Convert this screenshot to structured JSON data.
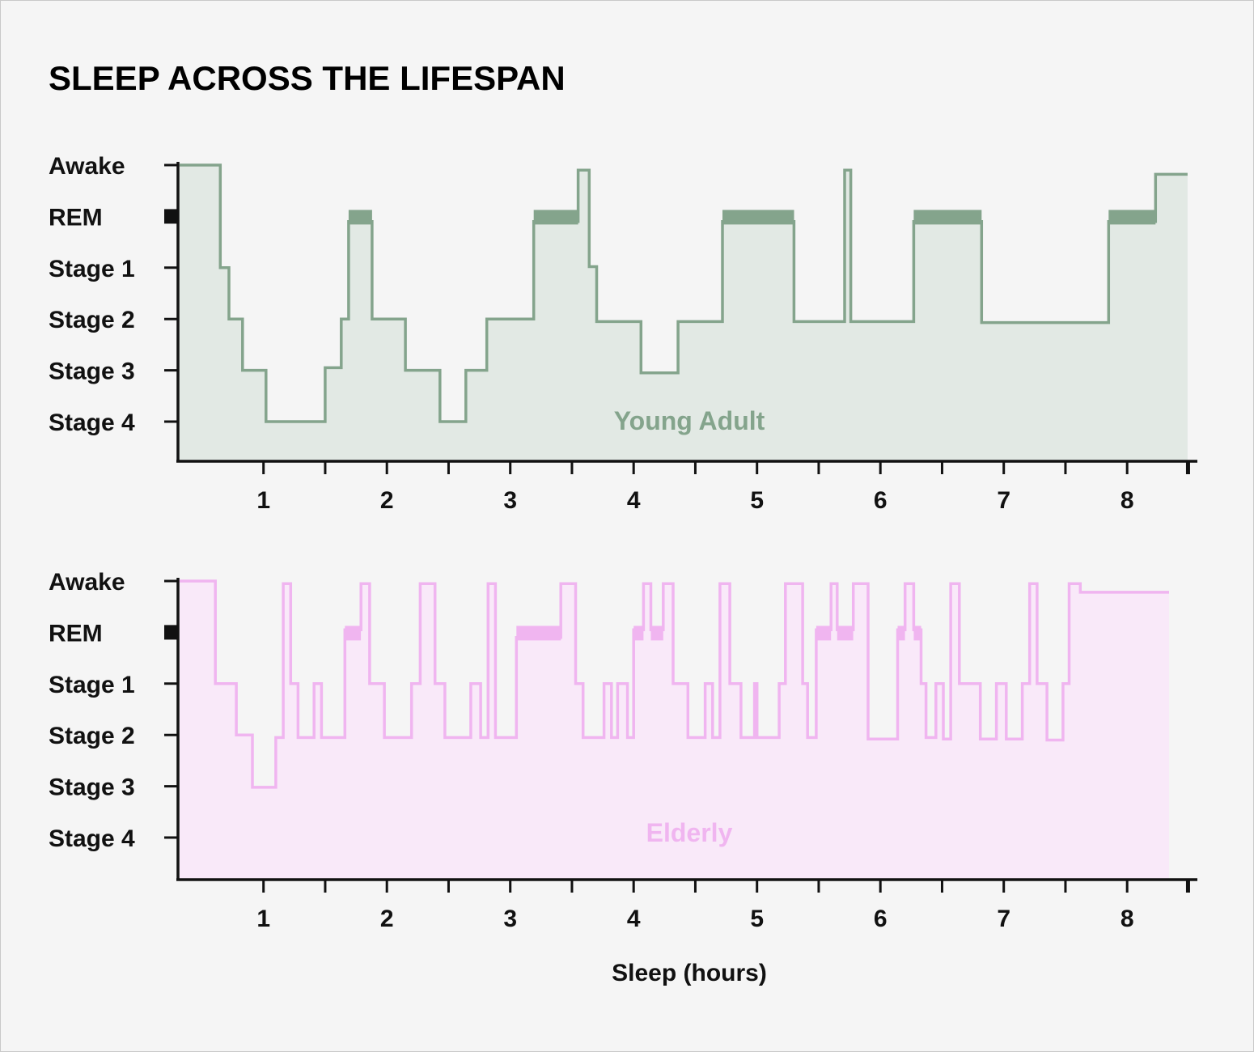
{
  "chart_data": {
    "title": "SLEEP ACROSS THE LIFESPAN",
    "type": "line",
    "xlabel": "Sleep (hours)",
    "stages": [
      "Awake",
      "REM",
      "Stage 1",
      "Stage 2",
      "Stage 3",
      "Stage 4"
    ],
    "xticks": [
      "1",
      "2",
      "3",
      "4",
      "5",
      "6",
      "7",
      "8"
    ],
    "xlim": [
      0.32,
      8.5
    ],
    "ylim": [
      -0.8,
      5.0
    ],
    "panels": [
      {
        "name": "Young Adult",
        "color": "#84a48c",
        "fill": "#e2e9e4",
        "step_points": [
          [
            0.32,
            5.0
          ],
          [
            0.65,
            5.0
          ],
          [
            0.65,
            3.0
          ],
          [
            0.72,
            3.0
          ],
          [
            0.72,
            2.0
          ],
          [
            0.83,
            2.0
          ],
          [
            0.83,
            1.0
          ],
          [
            1.02,
            1.0
          ],
          [
            1.02,
            0.0
          ],
          [
            1.5,
            0.0
          ],
          [
            1.5,
            1.05
          ],
          [
            1.63,
            1.05
          ],
          [
            1.63,
            2.0
          ],
          [
            1.69,
            2.0
          ],
          [
            1.69,
            3.9
          ],
          [
            1.88,
            3.9
          ],
          [
            1.88,
            2.0
          ],
          [
            2.15,
            2.0
          ],
          [
            2.15,
            1.0
          ],
          [
            2.43,
            1.0
          ],
          [
            2.43,
            0.0
          ],
          [
            2.64,
            0.0
          ],
          [
            2.64,
            1.0
          ],
          [
            2.81,
            1.0
          ],
          [
            2.81,
            2.0
          ],
          [
            3.19,
            2.0
          ],
          [
            3.19,
            3.9
          ],
          [
            3.55,
            3.9
          ],
          [
            3.55,
            4.9
          ],
          [
            3.64,
            4.9
          ],
          [
            3.64,
            3.02
          ],
          [
            3.7,
            3.02
          ],
          [
            3.7,
            1.95
          ],
          [
            4.06,
            1.95
          ],
          [
            4.06,
            0.95
          ],
          [
            4.36,
            0.95
          ],
          [
            4.36,
            1.95
          ],
          [
            4.72,
            1.95
          ],
          [
            4.72,
            3.9
          ],
          [
            5.3,
            3.9
          ],
          [
            5.3,
            1.95
          ],
          [
            5.71,
            1.95
          ],
          [
            5.71,
            4.9
          ],
          [
            5.76,
            4.9
          ],
          [
            5.76,
            1.95
          ],
          [
            6.27,
            1.95
          ],
          [
            6.27,
            3.9
          ],
          [
            6.82,
            3.9
          ],
          [
            6.82,
            1.93
          ],
          [
            7.85,
            1.93
          ],
          [
            7.85,
            3.9
          ],
          [
            8.23,
            3.9
          ],
          [
            8.23,
            4.82
          ],
          [
            8.49,
            4.82
          ]
        ],
        "rem_bands": [
          [
            1.69,
            1.88
          ],
          [
            3.19,
            3.55
          ],
          [
            4.72,
            5.3
          ],
          [
            6.27,
            6.82
          ],
          [
            7.85,
            8.23
          ]
        ]
      },
      {
        "name": "Elderly",
        "color": "#f0b5f0",
        "fill": "#f9e9f9",
        "step_points": [
          [
            0.32,
            5.0
          ],
          [
            0.61,
            5.0
          ],
          [
            0.61,
            3.0
          ],
          [
            0.78,
            3.0
          ],
          [
            0.78,
            2.0
          ],
          [
            0.91,
            2.0
          ],
          [
            0.91,
            0.98
          ],
          [
            1.1,
            0.98
          ],
          [
            1.1,
            1.95
          ],
          [
            1.16,
            1.95
          ],
          [
            1.16,
            4.95
          ],
          [
            1.22,
            4.95
          ],
          [
            1.22,
            3.0
          ],
          [
            1.28,
            3.0
          ],
          [
            1.28,
            1.95
          ],
          [
            1.41,
            1.95
          ],
          [
            1.41,
            3.0
          ],
          [
            1.47,
            3.0
          ],
          [
            1.47,
            1.95
          ],
          [
            1.66,
            1.95
          ],
          [
            1.66,
            4.05
          ],
          [
            1.79,
            4.05
          ],
          [
            1.79,
            4.95
          ],
          [
            1.86,
            4.95
          ],
          [
            1.86,
            3.0
          ],
          [
            1.98,
            3.0
          ],
          [
            1.98,
            1.95
          ],
          [
            2.2,
            1.95
          ],
          [
            2.2,
            3.0
          ],
          [
            2.27,
            3.0
          ],
          [
            2.27,
            4.95
          ],
          [
            2.39,
            4.95
          ],
          [
            2.39,
            3.0
          ],
          [
            2.47,
            3.0
          ],
          [
            2.47,
            1.95
          ],
          [
            2.68,
            1.95
          ],
          [
            2.68,
            3.0
          ],
          [
            2.76,
            3.0
          ],
          [
            2.76,
            1.95
          ],
          [
            2.82,
            1.95
          ],
          [
            2.82,
            4.95
          ],
          [
            2.88,
            4.95
          ],
          [
            2.88,
            1.95
          ],
          [
            3.05,
            1.95
          ],
          [
            3.05,
            3.9
          ],
          [
            3.41,
            3.9
          ],
          [
            3.41,
            4.95
          ],
          [
            3.53,
            4.95
          ],
          [
            3.53,
            3.0
          ],
          [
            3.59,
            3.0
          ],
          [
            3.59,
            1.95
          ],
          [
            3.76,
            1.95
          ],
          [
            3.76,
            3.0
          ],
          [
            3.82,
            3.0
          ],
          [
            3.82,
            1.95
          ],
          [
            3.87,
            1.95
          ],
          [
            3.87,
            3.0
          ],
          [
            3.95,
            3.0
          ],
          [
            3.95,
            1.95
          ],
          [
            4.0,
            1.95
          ],
          [
            4.0,
            4.05
          ],
          [
            4.08,
            4.05
          ],
          [
            4.08,
            4.95
          ],
          [
            4.14,
            4.95
          ],
          [
            4.14,
            4.05
          ],
          [
            4.24,
            4.05
          ],
          [
            4.24,
            4.95
          ],
          [
            4.32,
            4.95
          ],
          [
            4.32,
            3.0
          ],
          [
            4.44,
            3.0
          ],
          [
            4.44,
            1.95
          ],
          [
            4.58,
            1.95
          ],
          [
            4.58,
            3.0
          ],
          [
            4.64,
            3.0
          ],
          [
            4.64,
            1.95
          ],
          [
            4.7,
            1.95
          ],
          [
            4.7,
            4.95
          ],
          [
            4.78,
            4.95
          ],
          [
            4.78,
            3.0
          ],
          [
            4.87,
            3.0
          ],
          [
            4.87,
            1.95
          ],
          [
            4.98,
            1.95
          ],
          [
            4.98,
            3.0
          ],
          [
            5.0,
            3.0
          ],
          [
            5.0,
            1.95
          ],
          [
            5.18,
            1.95
          ],
          [
            5.18,
            3.0
          ],
          [
            5.23,
            3.0
          ],
          [
            5.23,
            4.95
          ],
          [
            5.37,
            4.95
          ],
          [
            5.37,
            3.0
          ],
          [
            5.41,
            3.0
          ],
          [
            5.41,
            1.95
          ],
          [
            5.48,
            1.95
          ],
          [
            5.48,
            4.05
          ],
          [
            5.6,
            4.05
          ],
          [
            5.6,
            4.95
          ],
          [
            5.65,
            4.95
          ],
          [
            5.65,
            4.05
          ],
          [
            5.78,
            4.05
          ],
          [
            5.78,
            4.95
          ],
          [
            5.9,
            4.95
          ],
          [
            5.9,
            1.92
          ],
          [
            6.14,
            1.92
          ],
          [
            6.14,
            4.05
          ],
          [
            6.2,
            4.05
          ],
          [
            6.2,
            4.95
          ],
          [
            6.27,
            4.95
          ],
          [
            6.27,
            4.05
          ],
          [
            6.33,
            4.05
          ],
          [
            6.33,
            3.0
          ],
          [
            6.37,
            3.0
          ],
          [
            6.37,
            1.95
          ],
          [
            6.45,
            1.95
          ],
          [
            6.45,
            3.0
          ],
          [
            6.51,
            3.0
          ],
          [
            6.51,
            1.92
          ],
          [
            6.57,
            1.92
          ],
          [
            6.57,
            4.95
          ],
          [
            6.64,
            4.95
          ],
          [
            6.64,
            3.0
          ],
          [
            6.81,
            3.0
          ],
          [
            6.81,
            1.92
          ],
          [
            6.94,
            1.92
          ],
          [
            6.94,
            3.0
          ],
          [
            7.02,
            3.0
          ],
          [
            7.02,
            1.92
          ],
          [
            7.15,
            1.92
          ],
          [
            7.15,
            3.0
          ],
          [
            7.21,
            3.0
          ],
          [
            7.21,
            4.95
          ],
          [
            7.27,
            4.95
          ],
          [
            7.27,
            3.0
          ],
          [
            7.35,
            3.0
          ],
          [
            7.35,
            1.9
          ],
          [
            7.48,
            1.9
          ],
          [
            7.48,
            3.0
          ],
          [
            7.53,
            3.0
          ],
          [
            7.53,
            4.95
          ],
          [
            7.62,
            4.95
          ],
          [
            7.62,
            4.78
          ],
          [
            8.34,
            4.78
          ]
        ],
        "rem_bands": [
          [
            1.66,
            1.79
          ],
          [
            3.05,
            3.41
          ],
          [
            4.0,
            4.08
          ],
          [
            4.14,
            4.24
          ],
          [
            5.48,
            5.6
          ],
          [
            5.65,
            5.78
          ],
          [
            6.14,
            6.2
          ],
          [
            6.27,
            6.33
          ]
        ]
      }
    ]
  }
}
